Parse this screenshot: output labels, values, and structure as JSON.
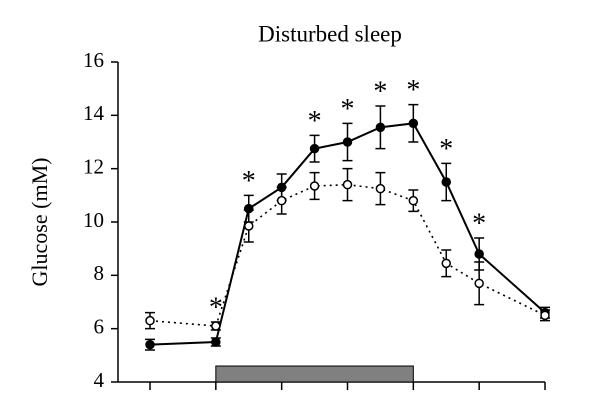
{
  "chart_data": {
    "type": "line",
    "title": "Disturbed sleep",
    "y_label": "Glucose (mM)",
    "x": [
      0,
      1,
      1.5,
      2,
      2.5,
      3,
      3.5,
      4,
      4.5,
      5,
      6
    ],
    "xlim": [
      0,
      6
    ],
    "xticks": [
      0,
      1,
      2,
      3,
      4,
      5,
      6
    ],
    "ylim": [
      4,
      16
    ],
    "yticks": [
      4,
      6,
      8,
      10,
      12,
      14,
      16
    ],
    "series": [
      {
        "color": "#000000",
        "marker": "filled",
        "dash": false,
        "values": [
          5.4,
          5.5,
          10.5,
          11.3,
          12.75,
          13.0,
          13.55,
          13.7,
          11.5,
          8.8,
          6.6
        ],
        "errors": [
          0.2,
          0.15,
          0.5,
          0.5,
          0.5,
          0.7,
          0.8,
          0.7,
          0.7,
          0.6,
          0.2
        ]
      },
      {
        "color": "#000000",
        "marker": "open",
        "dash": true,
        "values": [
          6.3,
          6.1,
          9.85,
          10.8,
          11.35,
          11.4,
          11.25,
          10.8,
          8.45,
          7.7,
          6.5
        ],
        "errors": [
          0.3,
          0.15,
          0.6,
          0.5,
          0.5,
          0.6,
          0.6,
          0.4,
          0.5,
          0.8,
          0.2
        ]
      }
    ],
    "shaded_span": {
      "x": [
        1,
        4
      ],
      "color": "#808080"
    },
    "annotations": [
      {
        "text": "*",
        "x": 1
      },
      {
        "text": "*",
        "x": 1.5
      },
      {
        "text": "*",
        "x": 2.5
      },
      {
        "text": "*",
        "x": 3
      },
      {
        "text": "*",
        "x": 3.5
      },
      {
        "text": "*",
        "x": 4
      },
      {
        "text": "*",
        "x": 4.5
      },
      {
        "text": "*",
        "x": 5
      }
    ]
  }
}
